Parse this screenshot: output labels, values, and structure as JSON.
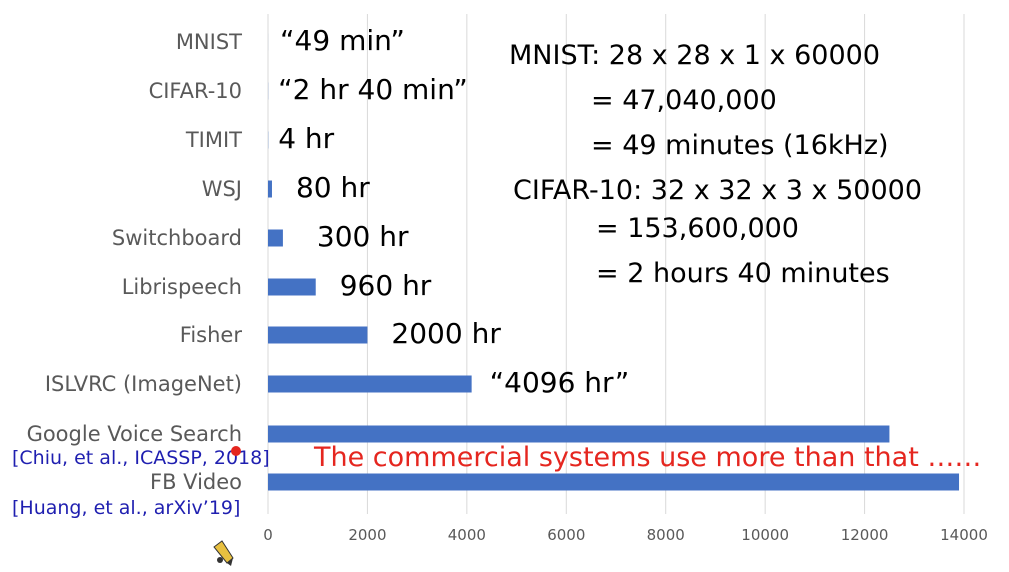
{
  "chart_data": {
    "type": "bar",
    "orientation": "horizontal",
    "categories": [
      "MNIST",
      "CIFAR-10",
      "TIMIT",
      "WSJ",
      "Switchboard",
      "Librispeech",
      "Fisher",
      "ISLVRC (ImageNet)",
      "Google Voice Search",
      "FB Video"
    ],
    "values": [
      0.8,
      2.7,
      4,
      80,
      300,
      960,
      2000,
      4096,
      12500,
      13900
    ],
    "value_labels": [
      "“49 min”",
      "“2 hr 40 min”",
      "4 hr",
      "80 hr",
      "300 hr",
      "960 hr",
      "2000 hr",
      "“4096 hr”",
      "",
      ""
    ],
    "xlim": [
      0,
      14000
    ],
    "xticks": [
      "0",
      "2000",
      "4000",
      "6000",
      "8000",
      "10000",
      "12000",
      "14000"
    ],
    "xtick_values": [
      0,
      2000,
      4000,
      6000,
      8000,
      10000,
      12000,
      14000
    ],
    "grid": true,
    "bar_color": "#4472c4",
    "title": "",
    "xlabel": "",
    "ylabel": ""
  },
  "citations": {
    "google_voice_search": "[Chiu, et al., ICASSP, 2018]",
    "fb_video": "[Huang, et al., arXiv’19]"
  },
  "commercial_note": "The commercial systems use more than that ……",
  "calculations": [
    "MNIST: 28 x 28 x 1 x 60000",
    "= 47,040,000",
    "= 49 minutes (16kHz)",
    "CIFAR-10: 32 x 32 x 3 x 50000",
    "= 153,600,000",
    "= 2 hours 40 minutes"
  ],
  "colors": {
    "citation": "#1f1fb0",
    "note": "#e5261f",
    "grid": "#d9d9d9",
    "label": "#595959"
  }
}
